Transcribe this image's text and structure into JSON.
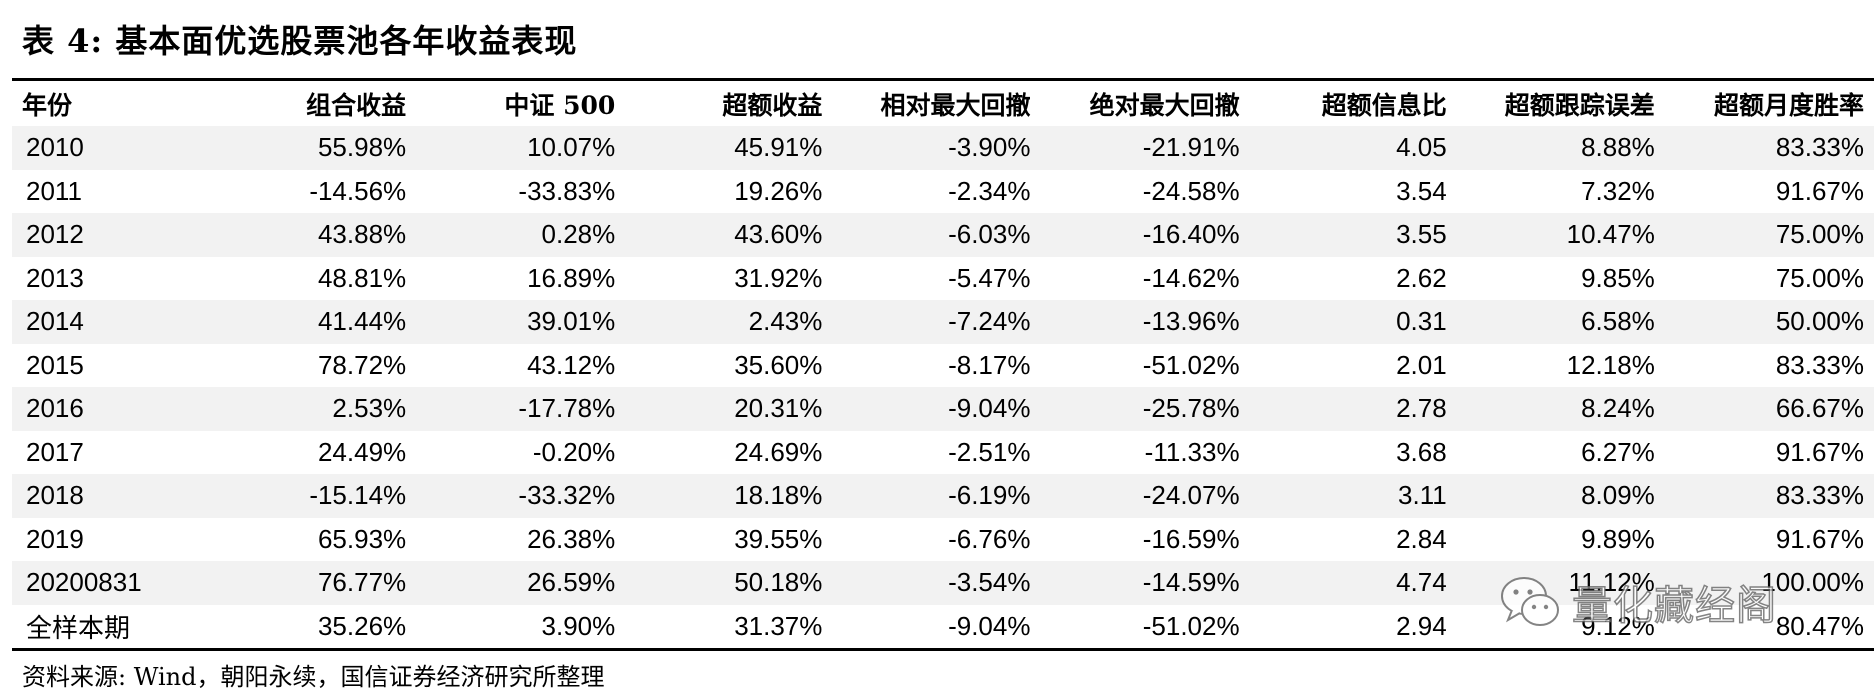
{
  "title": "表 4:  基本面优选股票池各年收益表现",
  "table": {
    "headers": [
      "年份",
      "组合收益",
      "中证 500",
      "超额收益",
      "相对最大回撤",
      "绝对最大回撤",
      "超额信息比",
      "超额跟踪误差",
      "超额月度胜率"
    ],
    "rows": [
      [
        "2010",
        "55.98%",
        "10.07%",
        "45.91%",
        "-3.90%",
        "-21.91%",
        "4.05",
        "8.88%",
        "83.33%"
      ],
      [
        "2011",
        "-14.56%",
        "-33.83%",
        "19.26%",
        "-2.34%",
        "-24.58%",
        "3.54",
        "7.32%",
        "91.67%"
      ],
      [
        "2012",
        "43.88%",
        "0.28%",
        "43.60%",
        "-6.03%",
        "-16.40%",
        "3.55",
        "10.47%",
        "75.00%"
      ],
      [
        "2013",
        "48.81%",
        "16.89%",
        "31.92%",
        "-5.47%",
        "-14.62%",
        "2.62",
        "9.85%",
        "75.00%"
      ],
      [
        "2014",
        "41.44%",
        "39.01%",
        "2.43%",
        "-7.24%",
        "-13.96%",
        "0.31",
        "6.58%",
        "50.00%"
      ],
      [
        "2015",
        "78.72%",
        "43.12%",
        "35.60%",
        "-8.17%",
        "-51.02%",
        "2.01",
        "12.18%",
        "83.33%"
      ],
      [
        "2016",
        "2.53%",
        "-17.78%",
        "20.31%",
        "-9.04%",
        "-25.78%",
        "2.78",
        "8.24%",
        "66.67%"
      ],
      [
        "2017",
        "24.49%",
        "-0.20%",
        "24.69%",
        "-2.51%",
        "-11.33%",
        "3.68",
        "6.27%",
        "91.67%"
      ],
      [
        "2018",
        "-15.14%",
        "-33.32%",
        "18.18%",
        "-6.19%",
        "-24.07%",
        "3.11",
        "8.09%",
        "83.33%"
      ],
      [
        "2019",
        "65.93%",
        "26.38%",
        "39.55%",
        "-6.76%",
        "-16.59%",
        "2.84",
        "9.89%",
        "91.67%"
      ],
      [
        "20200831",
        "76.77%",
        "26.59%",
        "50.18%",
        "-3.54%",
        "-14.59%",
        "4.74",
        "11.12%",
        "100.00%"
      ],
      [
        "全样本期",
        "35.26%",
        "3.90%",
        "31.37%",
        "-9.04%",
        "-51.02%",
        "2.94",
        "9.12%",
        "80.47%"
      ]
    ]
  },
  "source": "资料来源: Wind，朝阳永续，国信证券经济研究所整理",
  "watermark": {
    "icon": "wechat-icon",
    "text": "量化藏经阁"
  }
}
